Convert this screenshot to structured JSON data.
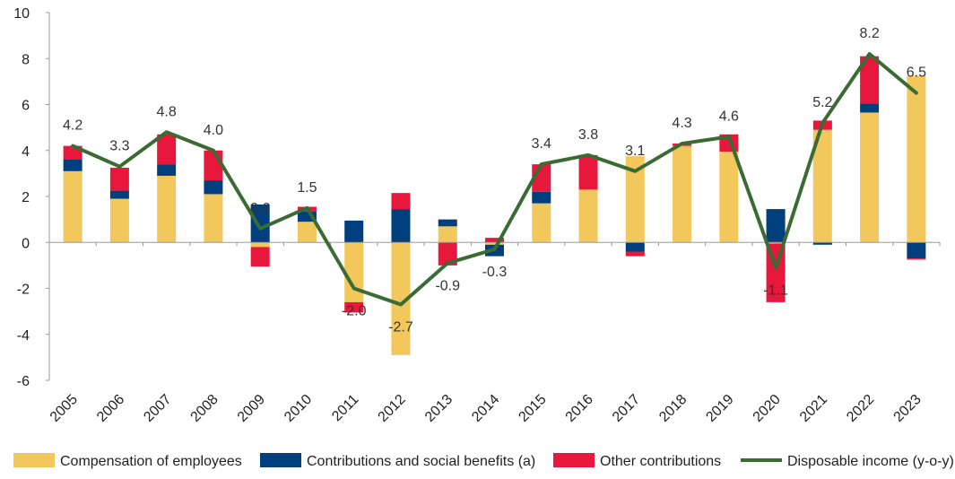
{
  "chart_data": {
    "type": "bar",
    "stacked": true,
    "categories": [
      "2005",
      "2006",
      "2007",
      "2008",
      "2009",
      "2010",
      "2011",
      "2012",
      "2013",
      "2014",
      "2015",
      "2016",
      "2017",
      "2018",
      "2019",
      "2020",
      "2021",
      "2022",
      "2023"
    ],
    "series": [
      {
        "name": "Compensation of employees",
        "color": "#F2C75C",
        "values": [
          3.1,
          1.9,
          2.9,
          2.1,
          -0.2,
          0.9,
          -2.6,
          -4.9,
          0.7,
          -0.1,
          1.7,
          2.3,
          3.75,
          4.2,
          3.95,
          -0.05,
          4.9,
          5.65,
          7.25
        ]
      },
      {
        "name": "Contributions and social benefits (a)",
        "color": "#003F7D",
        "values": [
          0.5,
          0.35,
          0.5,
          0.6,
          1.65,
          0.45,
          0.95,
          1.45,
          0.3,
          -0.5,
          0.5,
          0.0,
          -0.4,
          0.0,
          0.0,
          1.45,
          -0.1,
          0.4,
          -0.7
        ]
      },
      {
        "name": "Other contributions",
        "color": "#E8173C",
        "values": [
          0.6,
          1.0,
          1.3,
          1.3,
          -0.85,
          0.2,
          -0.45,
          0.7,
          -1.0,
          0.2,
          1.2,
          1.5,
          -0.2,
          0.1,
          0.75,
          -2.55,
          0.4,
          2.05,
          -0.05
        ]
      }
    ],
    "line": {
      "name": "Disposable income (y-o-y)",
      "color": "#3A6B35",
      "values": [
        4.2,
        3.3,
        4.8,
        4.0,
        0.6,
        1.5,
        -2.0,
        -2.7,
        -0.9,
        -0.3,
        3.4,
        3.8,
        3.1,
        4.3,
        4.6,
        -1.1,
        5.2,
        8.2,
        6.5
      ],
      "labels": [
        "4.2",
        "3.3",
        "4.8",
        "4.0",
        "0.6",
        "1.5",
        "-2.0",
        "-2.7",
        "-0.9",
        "-0.3",
        "3.4",
        "3.8",
        "3.1",
        "4.3",
        "4.6",
        "-1.1",
        "5.2",
        "8.2",
        "6.5"
      ]
    },
    "ylim": [
      -6,
      10
    ],
    "yticks": [
      "10",
      "8",
      "6",
      "4",
      "2",
      "0",
      "-2",
      "-4",
      "-6"
    ],
    "ytick_values": [
      10,
      8,
      6,
      4,
      2,
      0,
      -2,
      -4,
      -6
    ],
    "grid": false,
    "legend_position": "bottom",
    "title": "",
    "xlabel": "",
    "ylabel": ""
  }
}
